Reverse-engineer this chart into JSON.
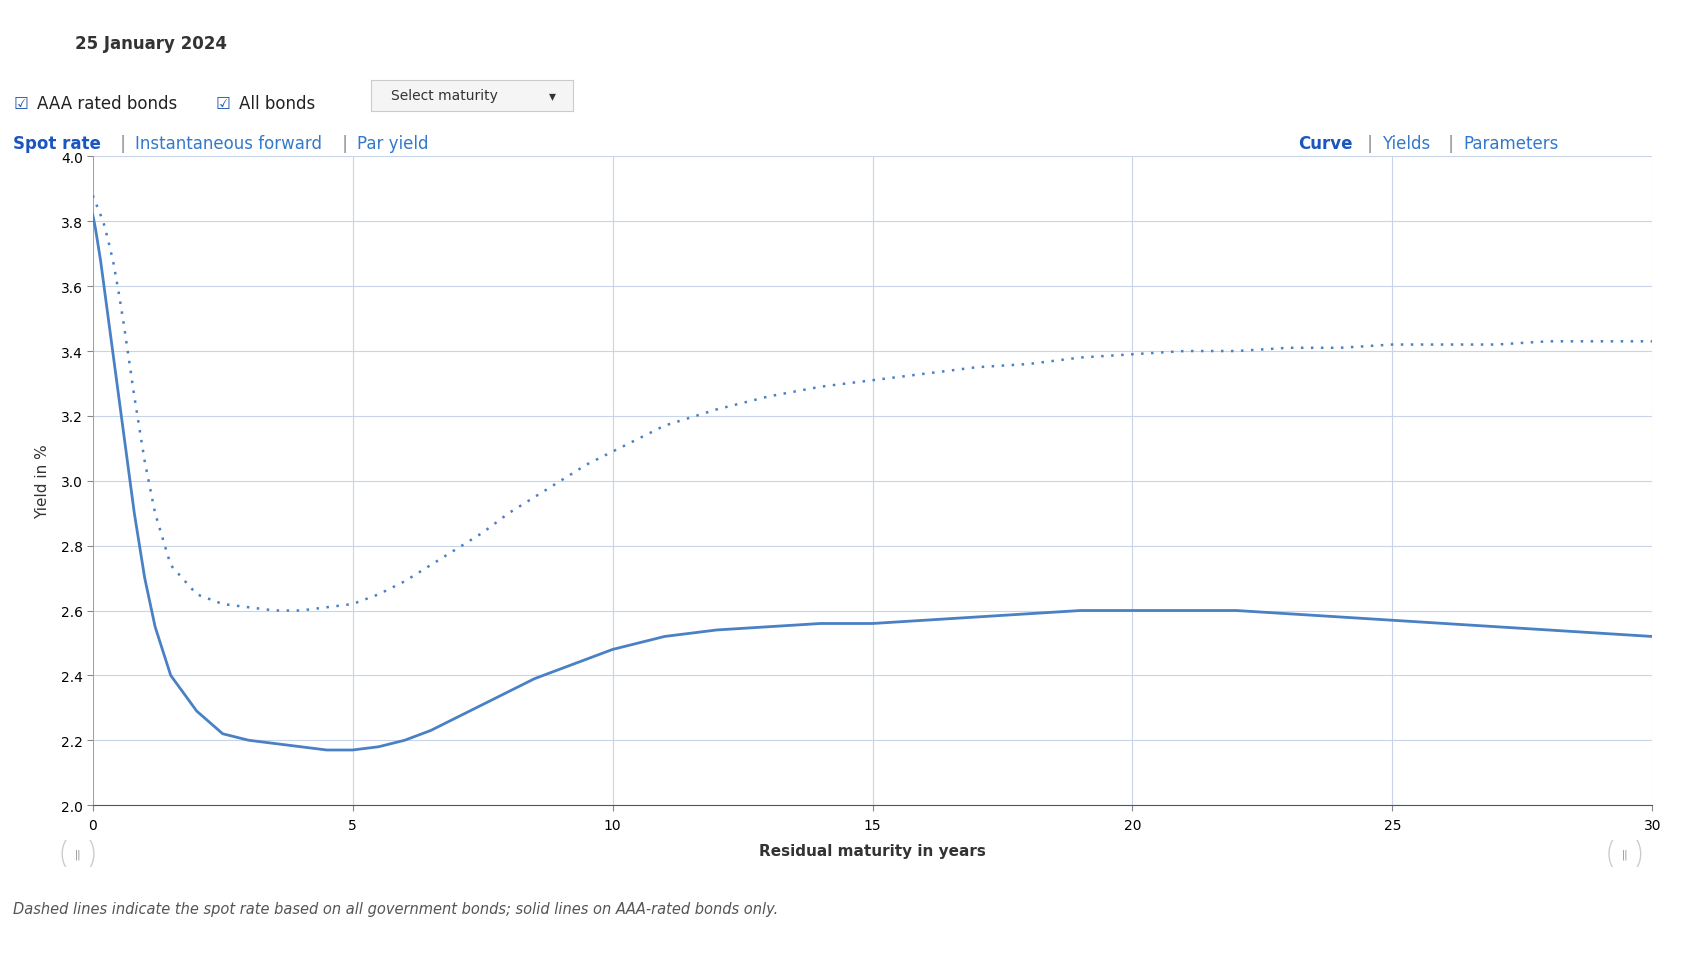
{
  "title_date": "25 January 2024",
  "xlabel": "Residual maturity in years",
  "ylabel": "Yield in %",
  "ylim": [
    2.0,
    4.0
  ],
  "xlim": [
    0,
    30
  ],
  "yticks": [
    2.0,
    2.2,
    2.4,
    2.6,
    2.8,
    3.0,
    3.2,
    3.4,
    3.6,
    3.8,
    4.0
  ],
  "xticks": [
    0,
    5,
    10,
    15,
    20,
    25,
    30
  ],
  "bg_color": "#ffffff",
  "grid_color": "#c8d4e8",
  "line_color": "#4a80c4",
  "footnote": "Dashed lines indicate the spot rate based on all government bonds; solid lines on AAA-rated bonds only.",
  "solid_x": [
    0.0,
    0.05,
    0.1,
    0.15,
    0.2,
    0.3,
    0.4,
    0.5,
    0.6,
    0.7,
    0.8,
    1.0,
    1.2,
    1.5,
    2.0,
    2.5,
    3.0,
    3.5,
    4.0,
    4.5,
    5.0,
    5.5,
    6.0,
    6.5,
    7.0,
    7.5,
    8.0,
    8.5,
    9.0,
    9.5,
    10.0,
    11.0,
    12.0,
    13.0,
    14.0,
    15.0,
    16.0,
    17.0,
    18.0,
    19.0,
    20.0,
    21.0,
    22.0,
    23.0,
    24.0,
    25.0,
    26.0,
    27.0,
    28.0,
    29.0,
    30.0
  ],
  "solid_y": [
    3.82,
    3.78,
    3.73,
    3.68,
    3.62,
    3.5,
    3.38,
    3.26,
    3.14,
    3.02,
    2.9,
    2.7,
    2.55,
    2.4,
    2.29,
    2.22,
    2.2,
    2.19,
    2.18,
    2.17,
    2.17,
    2.18,
    2.2,
    2.23,
    2.27,
    2.31,
    2.35,
    2.39,
    2.42,
    2.45,
    2.48,
    2.52,
    2.54,
    2.55,
    2.56,
    2.56,
    2.57,
    2.58,
    2.59,
    2.6,
    2.6,
    2.6,
    2.6,
    2.59,
    2.58,
    2.57,
    2.56,
    2.55,
    2.54,
    2.53,
    2.52
  ],
  "dashed_x": [
    0.0,
    0.05,
    0.1,
    0.15,
    0.2,
    0.3,
    0.4,
    0.5,
    0.6,
    0.7,
    0.8,
    1.0,
    1.2,
    1.5,
    2.0,
    2.5,
    3.0,
    3.5,
    4.0,
    4.5,
    5.0,
    5.5,
    6.0,
    6.5,
    7.0,
    7.5,
    8.0,
    8.5,
    9.0,
    9.5,
    10.0,
    11.0,
    12.0,
    13.0,
    14.0,
    15.0,
    16.0,
    17.0,
    18.0,
    19.0,
    20.0,
    21.0,
    22.0,
    23.0,
    24.0,
    25.0,
    26.0,
    27.0,
    28.0,
    29.0,
    30.0
  ],
  "dashed_y": [
    3.88,
    3.86,
    3.84,
    3.82,
    3.8,
    3.74,
    3.67,
    3.58,
    3.48,
    3.37,
    3.26,
    3.06,
    2.9,
    2.74,
    2.65,
    2.62,
    2.61,
    2.6,
    2.6,
    2.61,
    2.62,
    2.65,
    2.69,
    2.74,
    2.79,
    2.84,
    2.9,
    2.95,
    3.0,
    3.05,
    3.09,
    3.17,
    3.22,
    3.26,
    3.29,
    3.31,
    3.33,
    3.35,
    3.36,
    3.38,
    3.39,
    3.4,
    3.4,
    3.41,
    3.41,
    3.42,
    3.42,
    3.42,
    3.43,
    3.43,
    3.43
  ]
}
